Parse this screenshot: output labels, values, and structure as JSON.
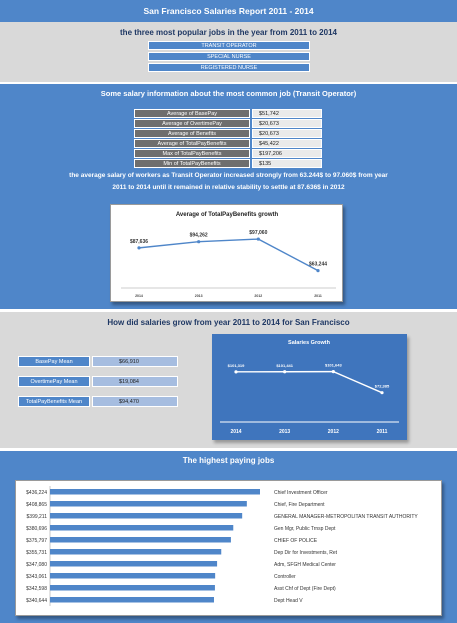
{
  "report": {
    "title": "San Francisco Salaries Report 2011 - 2014"
  },
  "popular_jobs": {
    "heading": "the three most popular jobs in the year from 2011 to 2014",
    "items": [
      "TRANSIT OPERATOR",
      "SPECIAL NURSE",
      "REGISTERED NURSE"
    ]
  },
  "salary_info": {
    "heading": "Some salary information about the most common job (Transit Operator)",
    "rows": [
      {
        "label": "Average of BasePay",
        "value": "$51,742"
      },
      {
        "label": "Average of OvertimePay",
        "value": "$20,673"
      },
      {
        "label": "Average of Benefits",
        "value": "$20,673"
      },
      {
        "label": "Average of TotalPayBenefits",
        "value": "$45,422"
      },
      {
        "label": "Max of TotalPayBenefits",
        "value": "$197,206"
      },
      {
        "label": "Min of TotalPayBenefits",
        "value": "$135"
      }
    ],
    "summary_line1": "the average salary of workers as Transit Operator increased strongly from 63.244$ to 97.060$ from year",
    "summary_line2": "2011 to 2014 until it remained in relative stability to settle at 87.636$ in 2012"
  },
  "growth_section": {
    "heading": "How did salaries grow from year 2011 to 2014 for San Francisco",
    "means": [
      {
        "label": "BasePay Mean",
        "value": "$66,910"
      },
      {
        "label": "OvertimePay Mean",
        "value": "$19,084"
      },
      {
        "label": "TotalPayBenefits Mean",
        "value": "$94,470"
      }
    ]
  },
  "paying_section": {
    "heading": "The highest paying jobs"
  },
  "colors": {
    "accent": "#4f86c9",
    "band_grey": "#d9d9d9",
    "line": "#4f86c9",
    "bar": "#4f86c9"
  },
  "chart_data": [
    {
      "type": "line",
      "title": "Average of TotalPayBenefits growth",
      "categories": [
        "2014",
        "2013",
        "2012",
        "2011"
      ],
      "values": [
        87636,
        94262,
        97060,
        63244
      ],
      "labels": [
        "$87,636",
        "$94,262",
        "$97,060",
        "$63,244"
      ],
      "ylim": [
        50000,
        110000
      ]
    },
    {
      "type": "line",
      "title": "Salaries Growth",
      "categories": [
        "2014",
        "2013",
        "2012",
        "2011"
      ],
      "values": [
        101319,
        101441,
        101643,
        72385
      ],
      "labels": [
        "$101,319",
        "$101,441",
        "$101,643",
        "$72,385"
      ],
      "ylim": [
        40000,
        115000
      ]
    },
    {
      "type": "bar",
      "orientation": "horizontal",
      "categories": [
        "Chief Investment Officer",
        "Chief, Fire Department",
        "GENERAL MANAGER-METROPOLITAN TRANSIT AUTHORITY",
        "Gen Mgr, Public Trnsp Dept",
        "CHIEF OF POLICE",
        "Dep Dir for Investments, Ret",
        "Adm, SFGH Medical Center",
        "Controller",
        "Asst Chf of Dept (Fire Dept)",
        "Dept Head V"
      ],
      "values": [
        436224,
        408865,
        399211,
        380696,
        375797,
        355731,
        347080,
        343061,
        342598,
        340644
      ],
      "labels": [
        "$436,224",
        "$408,865",
        "$399,211",
        "$380,696",
        "$375,797",
        "$355,731",
        "$347,080",
        "$343,061",
        "$342,598",
        "$340,644"
      ],
      "xlim": [
        0,
        436224
      ]
    }
  ]
}
